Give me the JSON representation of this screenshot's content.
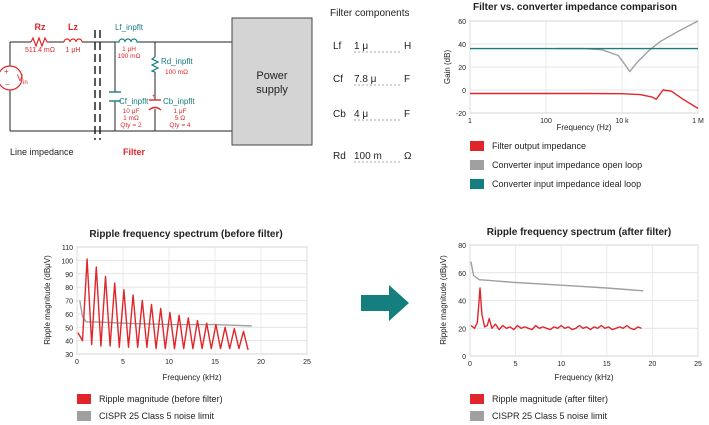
{
  "colors": {
    "red": "#e0262a",
    "teal": "#157f7f",
    "gray": "#a0a0a0",
    "dark": "#222222",
    "box": "#d4d4d4"
  },
  "circuit": {
    "rz_name": "Rz",
    "rz_value": "511.4 mΩ",
    "lz_name": "Lz",
    "lz_value": "1 μH",
    "source_label": "V",
    "source_sub": "in",
    "lf_name": "Lf_inpflt",
    "lf_value1": "1 μH",
    "lf_value2": "190 mΩ",
    "rd_name": "Rd_inpflt",
    "rd_value": "100 mΩ",
    "cf_name": "Cf_inpflt",
    "cf_value1": "10 μF",
    "cf_value2": "1 mΩ",
    "cf_value3": "Qty = 2",
    "cb_name": "Cb_inpflt",
    "cb_value1": "1 μF",
    "cb_value2": "5 Ω",
    "cb_value3": "Qty = 4",
    "power_supply_line1": "Power",
    "power_supply_line2": "supply",
    "line_impedance_label": "Line impedance",
    "filter_label": "Filter"
  },
  "filter_components": {
    "title": "Filter components",
    "rows": [
      {
        "name": "Lf",
        "value": "1 μ",
        "unit": "H"
      },
      {
        "name": "Cf",
        "value": "7.8 μ",
        "unit": "F"
      },
      {
        "name": "Cb",
        "value": "4 μ",
        "unit": "F"
      },
      {
        "name": "Rd",
        "value": "100 m",
        "unit": "Ω"
      }
    ]
  },
  "chart_data": [
    {
      "type": "line",
      "title": "Filter vs. converter impedance comparison",
      "xlabel": "Frequency (Hz)",
      "ylabel": "Gain (dB)",
      "xscale": "log",
      "xlim": [
        1,
        1000000
      ],
      "ylim": [
        -20,
        60
      ],
      "xtick_values": [
        1,
        100,
        10000,
        1000000
      ],
      "xtick_labels": [
        "1",
        "100",
        "10 k",
        "1 M"
      ],
      "yticks": [
        -20,
        0,
        20,
        40,
        60
      ],
      "legend": "below",
      "series": [
        {
          "name": "Filter output impedance",
          "color": "#e0262a",
          "x": [
            1,
            10,
            100,
            1000,
            10000,
            30000,
            60000,
            80000,
            120000,
            200000,
            400000,
            1000000
          ],
          "y": [
            -3,
            -3,
            -3,
            -3,
            -3.2,
            -4,
            -6,
            -8,
            0,
            -1,
            -8,
            -16
          ]
        },
        {
          "name": "Converter input impedance open loop",
          "color": "#a0a0a0",
          "x": [
            200,
            1000,
            3000,
            8000,
            12000,
            16000,
            25000,
            50000,
            100000,
            300000,
            1000000
          ],
          "y": [
            36,
            36,
            35,
            30,
            22,
            16,
            24,
            34,
            42,
            51,
            60
          ]
        },
        {
          "name": "Converter input impedance ideal loop",
          "color": "#157f7f",
          "x": [
            1,
            1000000
          ],
          "y": [
            36,
            36
          ]
        }
      ]
    },
    {
      "type": "line",
      "title": "Ripple frequency spectrum (before filter)",
      "xlabel": "Frequency (kHz)",
      "ylabel": "Ripple magnitude (dBμV)",
      "xlim": [
        0,
        25
      ],
      "ylim": [
        30,
        110
      ],
      "xticks": [
        0,
        5,
        10,
        15,
        20,
        25
      ],
      "yticks": [
        30,
        40,
        50,
        60,
        70,
        80,
        90,
        100,
        110
      ],
      "legend": "below",
      "series": [
        {
          "name": "Ripple magnitude (before filter)",
          "color": "#e0262a",
          "x": [
            0.1,
            0.6,
            1.1,
            1.6,
            2.1,
            2.6,
            3.1,
            3.6,
            4.1,
            4.6,
            5.1,
            5.6,
            6.1,
            6.6,
            7.1,
            7.6,
            8.1,
            8.6,
            9.1,
            9.6,
            10.1,
            10.6,
            11.1,
            11.6,
            12.1,
            12.6,
            13.1,
            13.6,
            14.1,
            14.6,
            15.1,
            15.6,
            16.1,
            16.6,
            17.1,
            17.6,
            18.1,
            18.6
          ],
          "y": [
            46,
            40,
            101,
            37,
            95,
            36,
            88,
            36,
            83,
            35,
            78,
            35,
            74,
            35,
            70,
            35,
            67,
            34,
            64,
            34,
            61,
            34,
            59,
            34,
            57,
            34,
            55,
            34,
            53,
            34,
            52,
            34,
            50,
            34,
            49,
            34,
            47,
            33
          ]
        },
        {
          "name": "CISPR 25 Class 5 noise limit",
          "color": "#a0a0a0",
          "x": [
            0.3,
            0.6,
            1,
            2,
            5,
            10,
            15,
            19
          ],
          "y": [
            70,
            58,
            54,
            54,
            53,
            52,
            52,
            51
          ]
        }
      ]
    },
    {
      "type": "line",
      "title": "Ripple frequency spectrum (after filter)",
      "xlabel": "Frequency (kHz)",
      "ylabel": "Ripple magnitude (dBμV)",
      "xlim": [
        0,
        25
      ],
      "ylim": [
        0,
        80
      ],
      "xticks": [
        0,
        5,
        10,
        15,
        20,
        25
      ],
      "yticks": [
        0,
        20,
        40,
        60,
        80
      ],
      "legend": "below",
      "series": [
        {
          "name": "Ripple magnitude (after filter)",
          "color": "#e0262a",
          "x": [
            0.1,
            0.5,
            0.8,
            1.0,
            1.1,
            1.3,
            1.6,
            1.9,
            2.1,
            2.4,
            2.8,
            3.2,
            3.6,
            4.0,
            4.4,
            4.8,
            5.2,
            5.6,
            6.0,
            6.4,
            6.8,
            7.2,
            7.6,
            8.0,
            8.4,
            8.8,
            9.2,
            9.6,
            10.0,
            10.4,
            10.8,
            11.2,
            11.6,
            12.0,
            12.4,
            12.8,
            13.2,
            13.6,
            14.0,
            14.4,
            14.8,
            15.2,
            15.6,
            16.0,
            16.4,
            16.8,
            17.2,
            17.6,
            18.0,
            18.4,
            18.8
          ],
          "y": [
            22,
            20,
            24,
            40,
            49,
            30,
            21,
            22,
            27,
            20,
            23,
            19,
            22,
            20,
            21,
            19,
            22,
            20,
            21,
            20,
            19,
            22,
            20,
            21,
            20,
            19,
            21,
            20,
            22,
            20,
            21,
            19,
            20,
            22,
            20,
            21,
            19,
            21,
            20,
            22,
            20,
            21,
            19,
            20,
            21,
            20,
            22,
            20,
            19,
            21,
            20
          ]
        },
        {
          "name": "CISPR 25 Class 5 noise limit",
          "color": "#a0a0a0",
          "x": [
            0.1,
            0.4,
            1,
            3,
            5,
            10,
            15,
            19
          ],
          "y": [
            68,
            58,
            55,
            54,
            53,
            51,
            49,
            47
          ]
        }
      ]
    }
  ]
}
